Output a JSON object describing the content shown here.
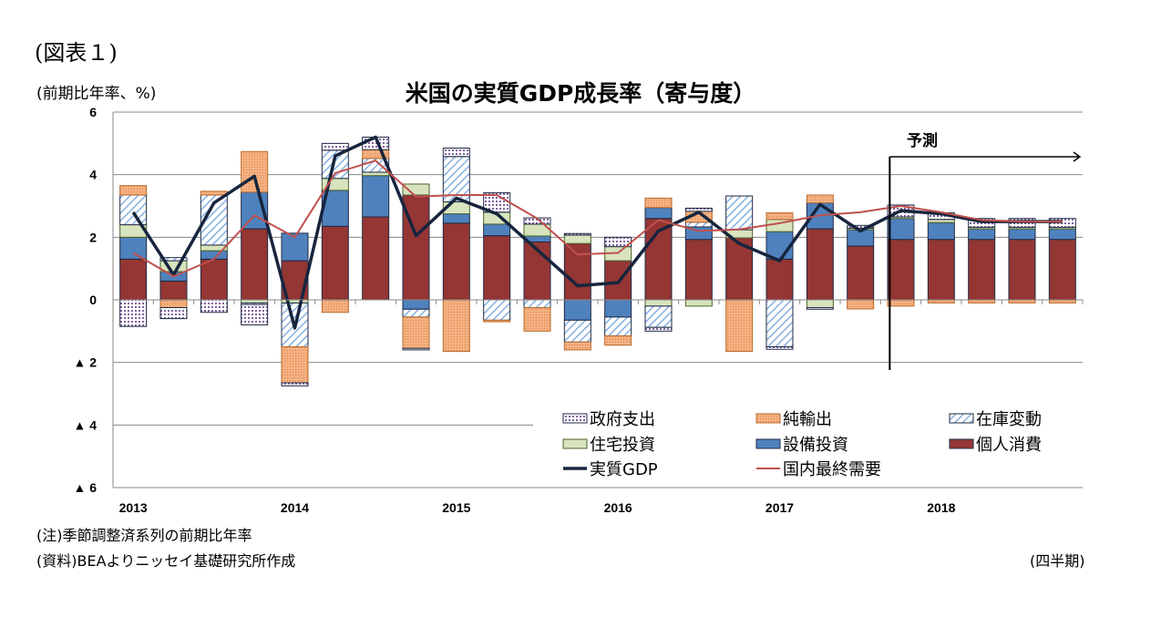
{
  "figure_label": "(図表１)",
  "unit_label": "(前期比年率、%)",
  "chart_data": {
    "type": "bar",
    "title": "米国の実質GDP成長率（寄与度）",
    "ylabel": "(前期比年率、%)",
    "xlabel": "(四半期)",
    "ylim": [
      -6,
      6
    ],
    "yticks": [
      6,
      4,
      2,
      0,
      -2,
      -4,
      -6
    ],
    "ytick_labels": [
      "6",
      "4",
      "2",
      "0",
      "▲ 2",
      "▲ 4",
      "▲ 6"
    ],
    "grid": true,
    "stacked": true,
    "categories": [
      "2013Q1",
      "2013Q2",
      "2013Q3",
      "2013Q4",
      "2014Q1",
      "2014Q2",
      "2014Q3",
      "2014Q4",
      "2015Q1",
      "2015Q2",
      "2015Q3",
      "2015Q4",
      "2016Q1",
      "2016Q2",
      "2016Q3",
      "2016Q4",
      "2017Q1",
      "2017Q2",
      "2017Q3",
      "2017Q4",
      "2018Q1",
      "2018Q2",
      "2018Q3",
      "2018Q4"
    ],
    "year_labels": [
      "2013",
      "2014",
      "2015",
      "2016",
      "2017",
      "2018"
    ],
    "series": [
      {
        "name": "個人消費",
        "key": "consumption",
        "color": "#943634",
        "values": [
          1.3,
          0.6,
          1.3,
          2.27,
          1.25,
          2.35,
          2.65,
          3.35,
          2.45,
          2.05,
          1.85,
          1.8,
          1.25,
          2.6,
          1.93,
          1.98,
          1.3,
          2.27,
          1.72,
          1.93,
          1.93,
          1.93,
          1.93,
          1.93
        ]
      },
      {
        "name": "設備投資",
        "key": "equipment",
        "color": "#4f81bd",
        "values": [
          0.7,
          0.3,
          0.27,
          1.17,
          0.88,
          1.15,
          1.32,
          -0.3,
          0.3,
          0.37,
          0.19,
          -0.65,
          -0.55,
          0.35,
          0.4,
          0,
          0.88,
          0.83,
          0.52,
          0.67,
          0.54,
          0.34,
          0.34,
          0.34
        ]
      },
      {
        "name": "住宅投資",
        "key": "residential",
        "color": "#d7e4bd",
        "values": [
          0.4,
          0.35,
          0.18,
          -0.1,
          -0.1,
          0.38,
          0.11,
          0.35,
          0.38,
          0.38,
          0.38,
          0.27,
          0.45,
          -0.2,
          -0.2,
          0.26,
          0.39,
          -0.25,
          0.05,
          0.05,
          0.1,
          0.05,
          0.05,
          0.05
        ]
      },
      {
        "name": "在庫変動",
        "key": "inventory",
        "color": "#8db3e2",
        "values": [
          0.95,
          0.1,
          1.6,
          -0.05,
          -1.4,
          0.9,
          0.44,
          -0.25,
          1.45,
          -0.65,
          -0.25,
          -0.7,
          -0.6,
          -0.68,
          0.15,
          1.08,
          -1.5,
          0,
          0,
          0,
          0,
          0,
          0,
          0
        ]
      },
      {
        "name": "純輸出",
        "key": "net_exports",
        "color": "#f4b183",
        "values": [
          0.3,
          -0.25,
          0.12,
          1.3,
          -1.15,
          -0.4,
          0.28,
          -1.0,
          -1.65,
          -0.05,
          -0.75,
          -0.25,
          -0.3,
          0.3,
          0.35,
          -1.65,
          0.21,
          0.25,
          -0.29,
          -0.2,
          -0.1,
          -0.1,
          -0.1,
          -0.1
        ]
      },
      {
        "name": "政府支出",
        "key": "government",
        "color": "#8064a2",
        "values": [
          -0.85,
          -0.35,
          -0.4,
          -0.65,
          -0.1,
          0.22,
          0.4,
          -0.05,
          0.27,
          0.62,
          0.2,
          0.05,
          0.3,
          -0.12,
          0.1,
          0,
          -0.08,
          -0.05,
          0.09,
          0.38,
          0.21,
          0.28,
          0.28,
          0.28
        ]
      }
    ],
    "lines": [
      {
        "name": "実質GDP",
        "key": "gdp",
        "color": "#17253d",
        "values": [
          2.8,
          0.8,
          3.1,
          3.95,
          -0.9,
          4.6,
          5.2,
          2.05,
          3.25,
          2.75,
          1.6,
          0.45,
          0.55,
          2.2,
          2.8,
          1.8,
          1.25,
          3.05,
          2.2,
          2.85,
          2.75,
          2.5,
          2.5,
          2.5
        ]
      },
      {
        "name": "国内最終需要",
        "key": "domestic_final_demand",
        "color": "#c0504d",
        "values": [
          1.5,
          0.75,
          1.3,
          2.7,
          2.0,
          4.05,
          4.45,
          3.3,
          3.35,
          3.35,
          2.6,
          1.45,
          1.5,
          2.55,
          2.2,
          2.25,
          2.45,
          2.7,
          2.8,
          3.0,
          2.8,
          2.55,
          2.5,
          2.5
        ]
      }
    ],
    "legend_order": [
      "政府支出",
      "純輸出",
      "在庫変動",
      "住宅投資",
      "設備投資",
      "個人消費",
      "実質GDP",
      "国内最終需要"
    ],
    "legend_placement": "bottom-right",
    "annotation": {
      "label": "予測",
      "forecast_start": "2017Q4"
    }
  },
  "notes": {
    "note": "(注)季節調整済系列の前期比年率",
    "source": "(資料)BEAよりニッセイ基礎研究所作成",
    "period": "(四半期)"
  }
}
